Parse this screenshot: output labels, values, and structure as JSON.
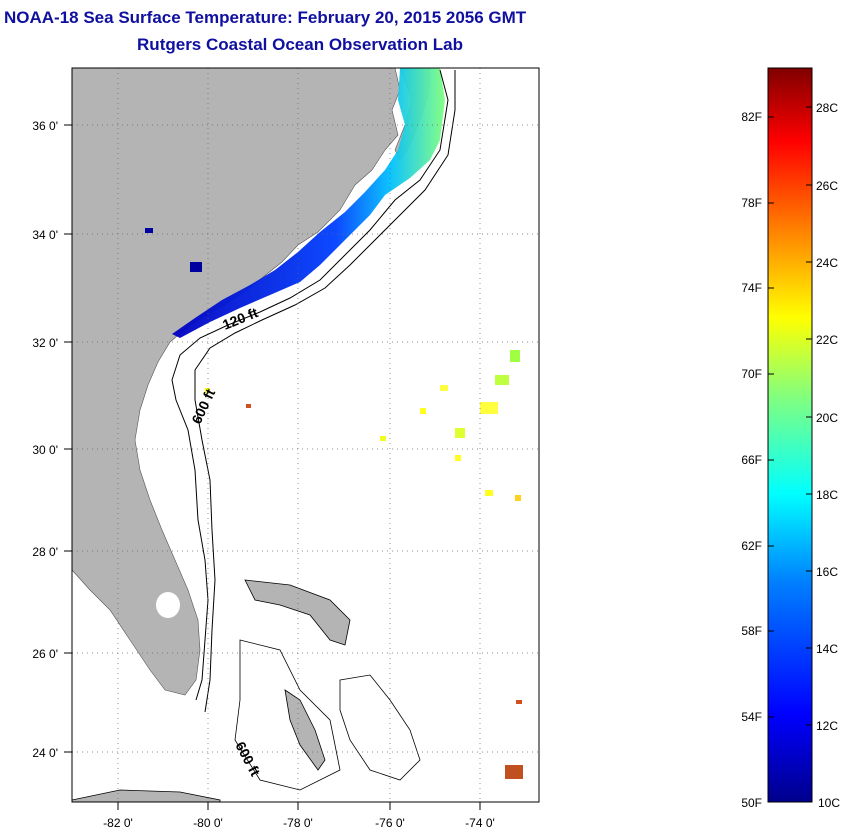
{
  "title": "NOAA-18 Sea Surface Temperature:  February 20, 2015 2056 GMT",
  "subtitle": "Rutgers Coastal Ocean Observation Lab",
  "map": {
    "lon_ticks": [
      "-82 0'",
      "-80 0'",
      "-78 0'",
      "-76 0'",
      "-74 0'"
    ],
    "lat_ticks": [
      "36 0'",
      "34 0'",
      "32 0'",
      "30 0'",
      "28 0'",
      "26 0'",
      "24 0'"
    ],
    "land_color": "#b4b4b4",
    "contour_labels": [
      "120 ft",
      "600 ft",
      "600 ft"
    ]
  },
  "colorbar": {
    "fahrenheit_labels": [
      "82F",
      "78F",
      "74F",
      "70F",
      "66F",
      "62F",
      "58F",
      "54F",
      "50F"
    ],
    "celsius_labels": [
      "28C",
      "26C",
      "24C",
      "22C",
      "20C",
      "18C",
      "16C",
      "14C",
      "12C",
      "10C"
    ],
    "colors": [
      "#0000a0",
      "#0000ff",
      "#0080ff",
      "#00ffff",
      "#80ff80",
      "#ffff00",
      "#ff8000",
      "#ff0000",
      "#800000"
    ]
  }
}
